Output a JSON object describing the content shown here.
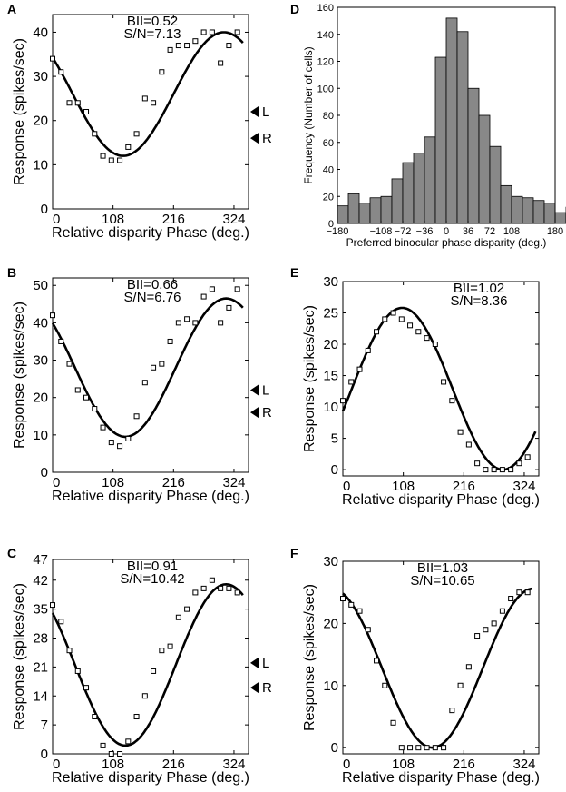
{
  "chart_data": [
    {
      "id": "A",
      "type": "line",
      "panel_label": "A",
      "stats": [
        "BII=0.52",
        "S/N=7.13"
      ],
      "xlabel": "Relative disparity Phase (deg.)",
      "ylabel": "Response (spikes/sec)",
      "xlim": [
        0,
        350
      ],
      "ylim": [
        0,
        44
      ],
      "xticks": [
        0,
        108,
        216,
        324
      ],
      "yticks": [
        0,
        10,
        20,
        30,
        40
      ],
      "monocular_markers": [
        {
          "label": "L",
          "value": 22
        },
        {
          "label": "R",
          "value": 16
        }
      ],
      "points": {
        "x": [
          0,
          15,
          30,
          45,
          60,
          75,
          90,
          105,
          120,
          135,
          150,
          165,
          180,
          195,
          210,
          225,
          240,
          255,
          270,
          285,
          300,
          315,
          330
        ],
        "y": [
          34,
          31,
          24,
          24,
          22,
          17,
          12,
          11,
          11,
          14,
          17,
          25,
          24,
          31,
          36,
          37,
          37,
          38,
          40,
          40,
          33,
          37,
          40
        ]
      },
      "fit": {
        "baseline": 26,
        "amplitude": 14,
        "preferred_phase": 306,
        "x_range": [
          0,
          340
        ]
      }
    },
    {
      "id": "B",
      "type": "line",
      "panel_label": "B",
      "stats": [
        "BII=0.66",
        "S/N=6.76"
      ],
      "xlabel": "Relative disparity Phase (deg.)",
      "ylabel": "Response (spikes/sec)",
      "xlim": [
        0,
        350
      ],
      "ylim": [
        0,
        52
      ],
      "xticks": [
        0,
        108,
        216,
        324
      ],
      "yticks": [
        0,
        10,
        20,
        30,
        40,
        50
      ],
      "monocular_markers": [
        {
          "label": "L",
          "value": 22
        },
        {
          "label": "R",
          "value": 16
        }
      ],
      "points": {
        "x": [
          0,
          15,
          30,
          45,
          60,
          75,
          90,
          105,
          120,
          135,
          150,
          165,
          180,
          195,
          210,
          225,
          240,
          255,
          270,
          285,
          300,
          315,
          330
        ],
        "y": [
          42,
          35,
          29,
          22,
          20,
          17,
          12,
          8,
          7,
          9,
          15,
          24,
          28,
          29,
          35,
          40,
          41,
          40,
          47,
          49,
          40,
          44,
          49
        ]
      },
      "fit": {
        "baseline": 28,
        "amplitude": 18.5,
        "preferred_phase": 310,
        "x_range": [
          0,
          340
        ]
      }
    },
    {
      "id": "C",
      "type": "line",
      "panel_label": "C",
      "stats": [
        "BII=0.91",
        "S/N=10.42"
      ],
      "xlabel": "Relative disparity Phase (deg.)",
      "ylabel": "Response (spikes/sec)",
      "xlim": [
        0,
        350
      ],
      "ylim": [
        0,
        47
      ],
      "xticks": [
        0,
        108,
        216,
        324
      ],
      "yticks": [
        0,
        7,
        14,
        21,
        28,
        35,
        42,
        47
      ],
      "monocular_markers": [
        {
          "label": "L",
          "value": 22
        },
        {
          "label": "R",
          "value": 16
        }
      ],
      "points": {
        "x": [
          0,
          15,
          30,
          45,
          60,
          75,
          90,
          105,
          120,
          135,
          150,
          165,
          180,
          195,
          210,
          225,
          240,
          255,
          270,
          285,
          300,
          315,
          330
        ],
        "y": [
          36,
          32,
          25,
          20,
          16,
          9,
          2,
          0,
          0,
          3,
          9,
          14,
          20,
          25,
          26,
          33,
          35,
          39,
          40,
          42,
          40,
          40,
          39
        ]
      },
      "fit": {
        "baseline": 21.5,
        "amplitude": 19.5,
        "preferred_phase": 310,
        "x_range": [
          0,
          340
        ]
      }
    },
    {
      "id": "D",
      "type": "bar",
      "panel_label": "D",
      "title": "",
      "xlabel": "Preferred binocular phase disparity (deg.)",
      "ylabel": "Frequency (Number of cells)",
      "xlim": [
        -180,
        180
      ],
      "ylim": [
        0,
        160
      ],
      "xticks": [
        -180,
        -108,
        -72,
        -36,
        0,
        36,
        72,
        108,
        180
      ],
      "yticks": [
        0,
        20,
        40,
        60,
        80,
        100,
        120,
        140,
        160
      ],
      "bin_width": 18,
      "bin_edges_start": -180,
      "values": [
        13,
        22,
        15,
        19,
        20,
        33,
        45,
        52,
        64,
        123,
        152,
        142,
        100,
        80,
        57,
        28,
        20,
        19,
        17,
        15,
        8,
        12
      ]
    },
    {
      "id": "E",
      "type": "line",
      "panel_label": "E",
      "stats": [
        "BII=1.02",
        "S/N=8.36"
      ],
      "xlabel": "Relative disparity Phase (deg.)",
      "ylabel": "Response (spikes/sec)",
      "xlim": [
        0,
        350
      ],
      "ylim": [
        -1,
        30
      ],
      "xticks": [
        0,
        108,
        216,
        324
      ],
      "yticks": [
        0,
        5,
        10,
        15,
        20,
        25,
        30
      ],
      "points": {
        "x": [
          0,
          15,
          30,
          45,
          60,
          75,
          90,
          105,
          120,
          135,
          150,
          165,
          180,
          195,
          210,
          225,
          240,
          255,
          270,
          285,
          300,
          315,
          330
        ],
        "y": [
          11,
          14,
          16,
          19,
          22,
          24,
          25,
          24,
          23,
          22,
          21,
          20,
          14,
          11,
          6,
          4,
          1,
          0,
          0,
          0,
          0,
          1,
          2
        ]
      },
      "fit": {
        "baseline": 12.9,
        "amplitude": 12.9,
        "preferred_phase": 106,
        "x_range": [
          0,
          345
        ]
      }
    },
    {
      "id": "F",
      "type": "line",
      "panel_label": "F",
      "stats": [
        "BII=1.03",
        "S/N=10.65"
      ],
      "xlabel": "Relative disparity Phase (deg.)",
      "ylabel": "Response (spikes/sec)",
      "xlim": [
        0,
        350
      ],
      "ylim": [
        -1,
        30
      ],
      "xticks": [
        0,
        108,
        216,
        324
      ],
      "yticks": [
        0,
        10,
        20,
        30
      ],
      "points": {
        "x": [
          0,
          15,
          30,
          45,
          60,
          75,
          90,
          105,
          120,
          135,
          150,
          165,
          180,
          195,
          210,
          225,
          240,
          255,
          270,
          285,
          300,
          315,
          330
        ],
        "y": [
          24,
          23,
          22,
          19,
          14,
          10,
          4,
          0,
          0,
          0,
          0,
          0,
          0,
          6,
          10,
          13,
          18,
          19,
          20,
          22,
          24,
          25,
          25
        ]
      },
      "fit": {
        "baseline": 12.8,
        "amplitude": 12.8,
        "preferred_phase": 340,
        "x_range": [
          0,
          338
        ]
      }
    }
  ]
}
